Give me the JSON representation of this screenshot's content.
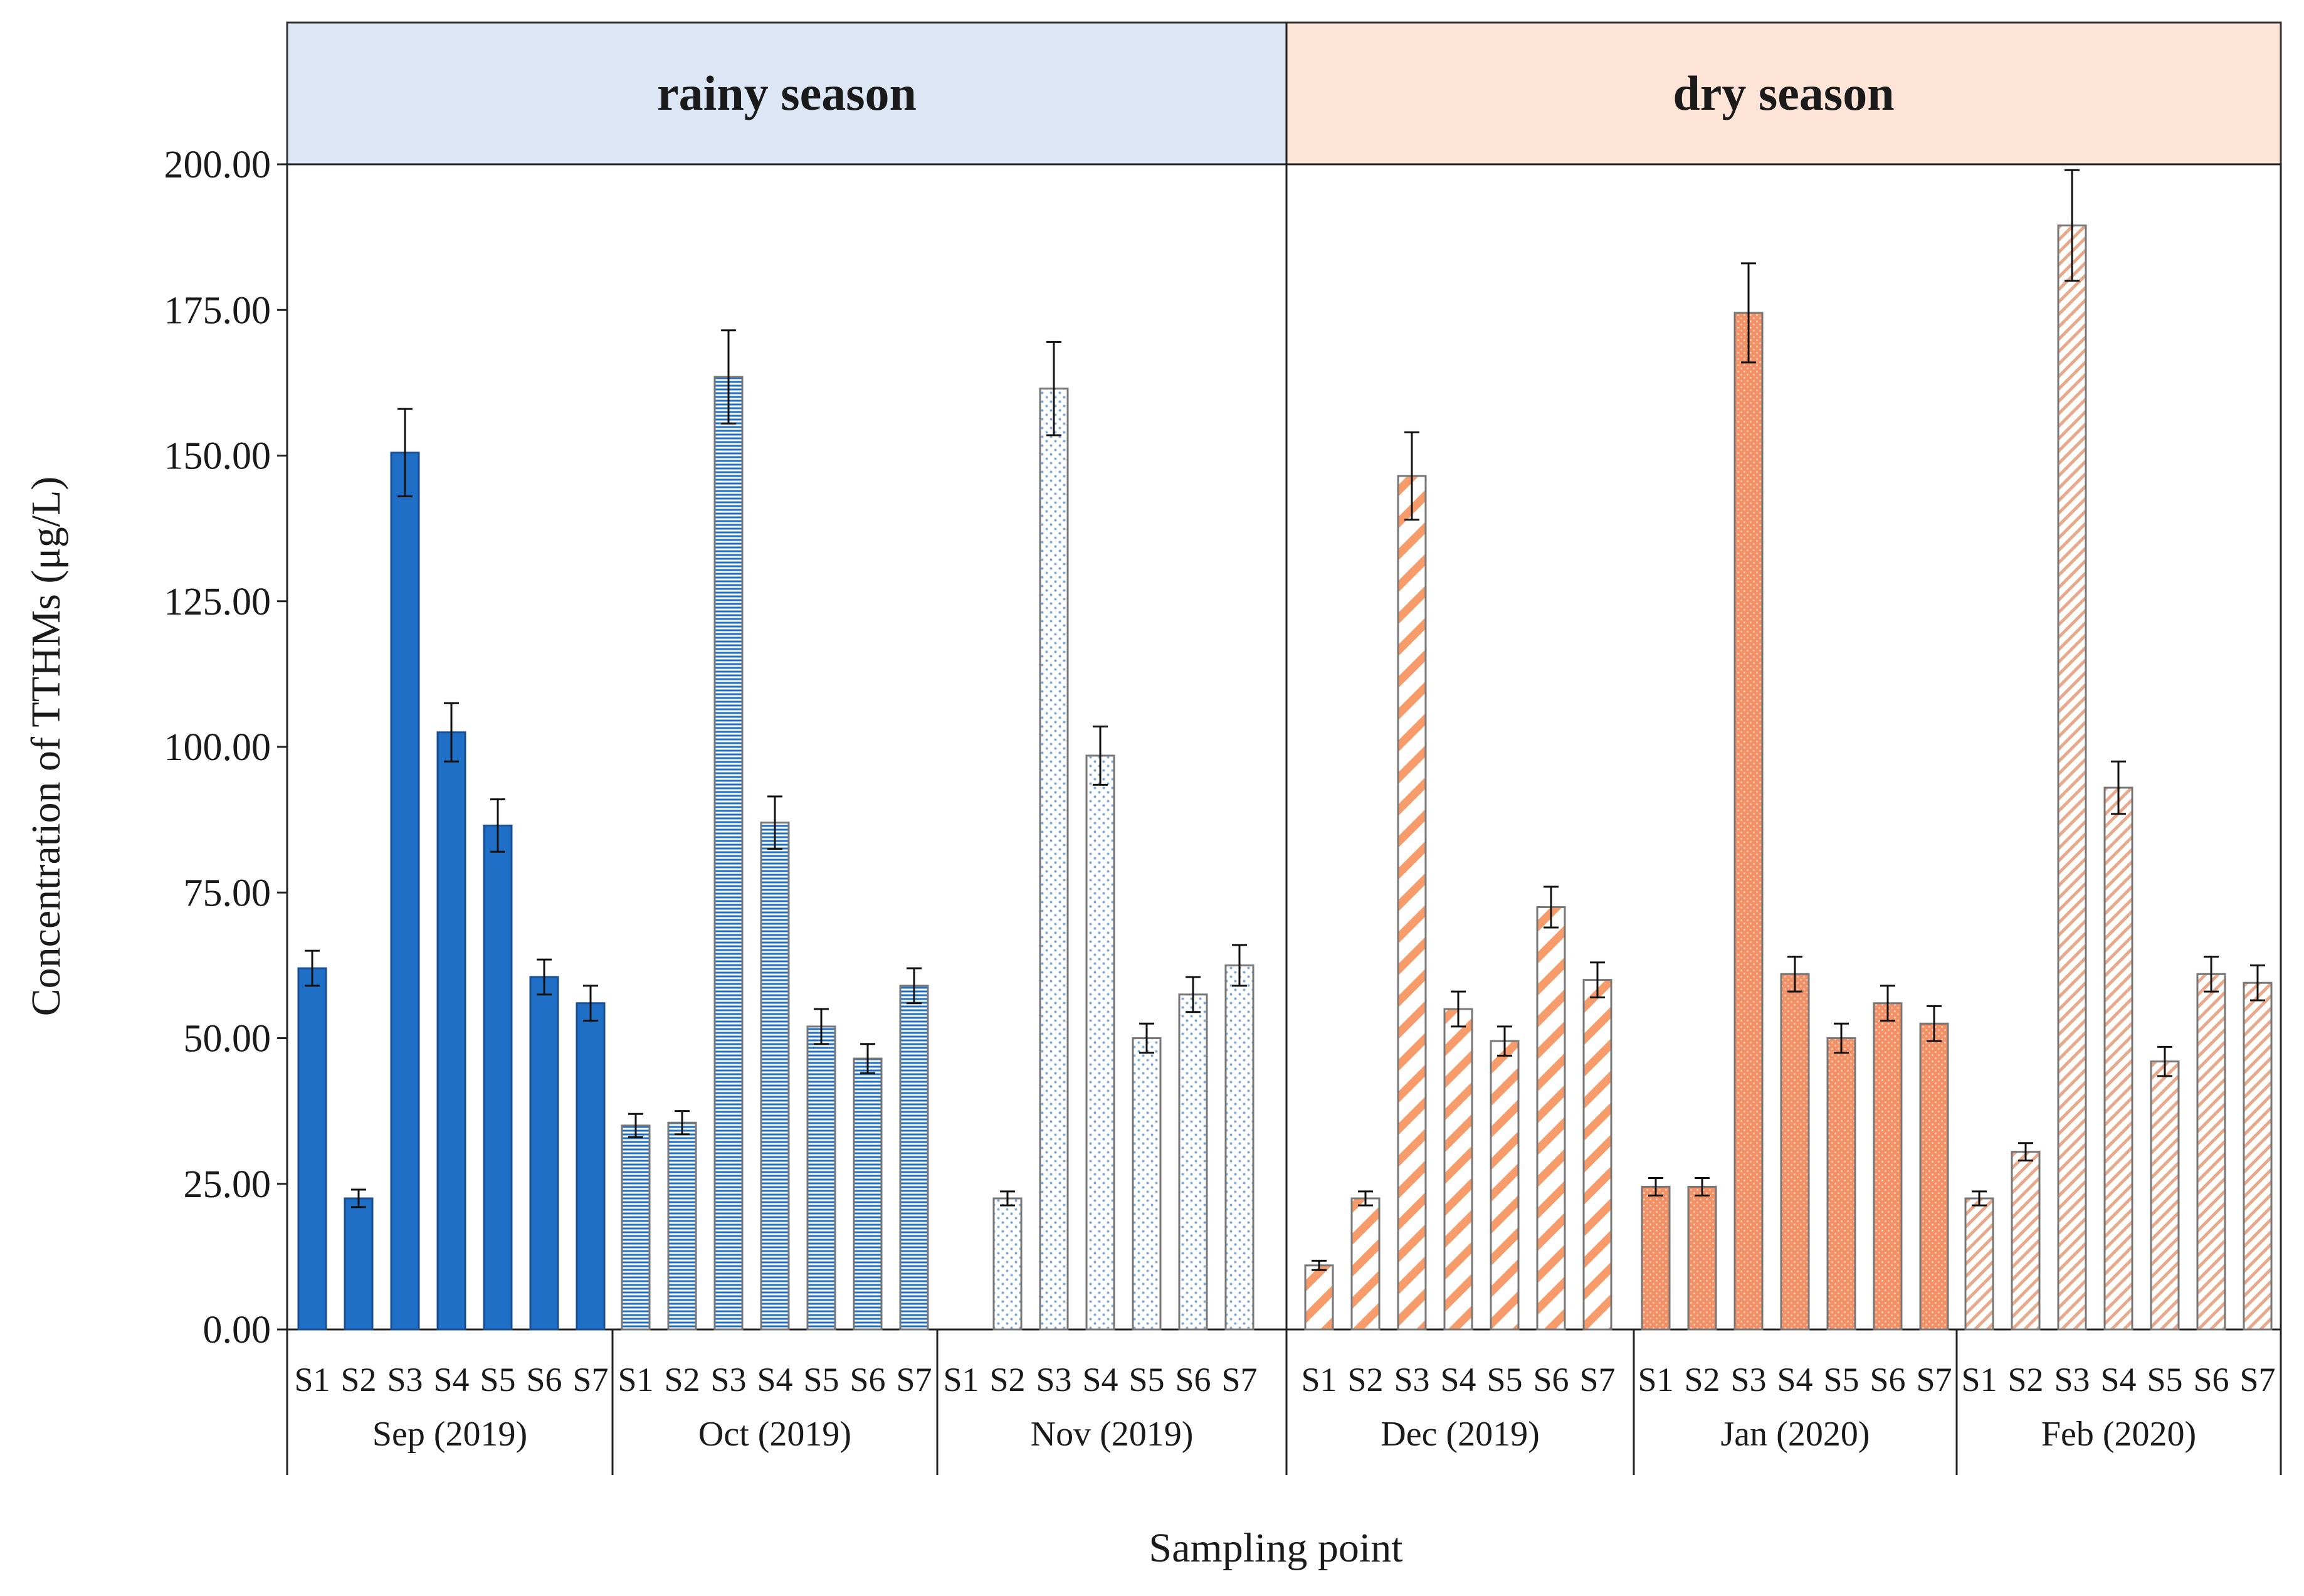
{
  "chart_data": {
    "type": "bar",
    "title": "",
    "xlabel": "Sampling point",
    "ylabel": "Concentration of TTHMs (μg/L)",
    "ylim": [
      0,
      200
    ],
    "yticks": [
      "0.00",
      "25.00",
      "50.00",
      "75.00",
      "100.00",
      "125.00",
      "150.00",
      "175.00",
      "200.00"
    ],
    "grid": false,
    "seasons": [
      {
        "label": "rainy season",
        "months": [
          0,
          1,
          2
        ],
        "color": "#dce6f4"
      },
      {
        "label": "dry season",
        "months": [
          3,
          4,
          5
        ],
        "color": "#fde4d6"
      }
    ],
    "groups": [
      {
        "label": "Sep (2019)",
        "pattern": "solid",
        "color": "#1f6fc6",
        "categories": [
          "S1",
          "S2",
          "S3",
          "S4",
          "S5",
          "S6",
          "S7"
        ],
        "values": [
          62,
          22.5,
          150.5,
          102.5,
          86.5,
          60.5,
          56
        ],
        "errors": [
          3,
          1.5,
          7.5,
          5,
          4.5,
          3,
          3
        ]
      },
      {
        "label": "Oct (2019)",
        "pattern": "horizontal",
        "color": "#1f6fc6",
        "categories": [
          "S1",
          "S2",
          "S3",
          "S4",
          "S5",
          "S6",
          "S7"
        ],
        "values": [
          35,
          35.5,
          163.5,
          87,
          52,
          46.5,
          59
        ],
        "errors": [
          2,
          2,
          8,
          4.5,
          3,
          2.5,
          3
        ]
      },
      {
        "label": "Nov (2019)",
        "pattern": "dots",
        "color": "#7aa7d8",
        "categories": [
          "S1",
          "S2",
          "S3",
          "S4",
          "S5",
          "S6",
          "S7"
        ],
        "values": [
          null,
          22.5,
          161.5,
          98.5,
          50,
          57.5,
          62.5
        ],
        "errors": [
          null,
          1.2,
          8,
          5,
          2.5,
          3,
          3.5
        ]
      },
      {
        "label": "Dec (2019)",
        "pattern": "diagonal-wide",
        "color": "#f79b6a",
        "categories": [
          "S1",
          "S2",
          "S3",
          "S4",
          "S5",
          "S6",
          "S7"
        ],
        "values": [
          11,
          22.5,
          146.5,
          55,
          49.5,
          72.5,
          60
        ],
        "errors": [
          0.8,
          1.2,
          7.5,
          3,
          2.5,
          3.5,
          3
        ]
      },
      {
        "label": "Jan (2020)",
        "pattern": "dense-dots",
        "color": "#f49065",
        "categories": [
          "S1",
          "S2",
          "S3",
          "S4",
          "S5",
          "S6",
          "S7"
        ],
        "values": [
          24.5,
          24.5,
          174.5,
          61,
          50,
          56,
          52.5
        ],
        "errors": [
          1.5,
          1.5,
          8.5,
          3,
          2.5,
          3,
          3
        ]
      },
      {
        "label": "Feb (2020)",
        "pattern": "diagonal-fine",
        "color": "#e7a98a",
        "categories": [
          "S1",
          "S2",
          "S3",
          "S4",
          "S5",
          "S6",
          "S7"
        ],
        "values": [
          22.5,
          30.5,
          189.5,
          93,
          46,
          61,
          59.5
        ],
        "errors": [
          1.2,
          1.5,
          9.5,
          4.5,
          2.5,
          3,
          3
        ]
      }
    ]
  }
}
